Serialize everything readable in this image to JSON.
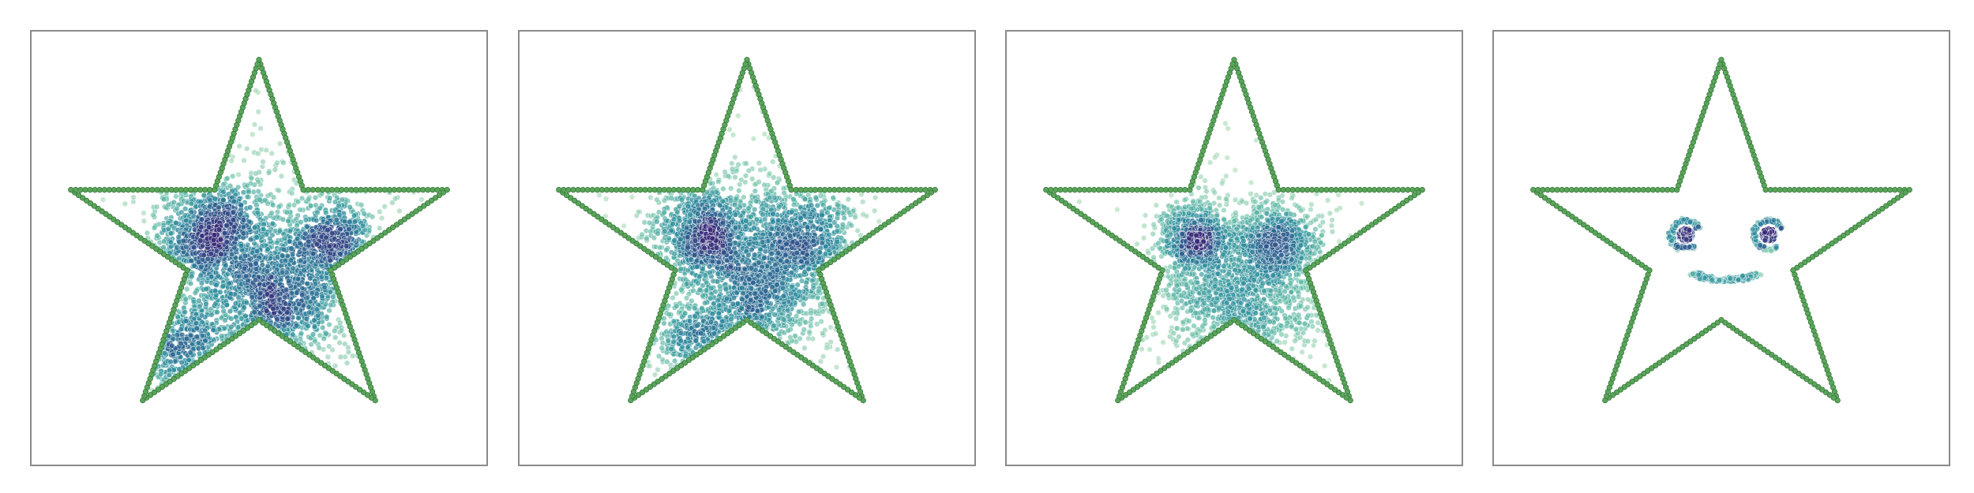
{
  "chart_data": [
    {
      "type": "scatter",
      "title": "",
      "xlabel": "",
      "ylabel": "",
      "axes": "hidden",
      "grid": false,
      "xlim": [
        -1.15,
        1.15
      ],
      "ylim": [
        -1.15,
        1.15
      ],
      "outline": {
        "shape": "five-pointed star",
        "vertices": [
          [
            0,
            1.0
          ],
          [
            0.2245,
            0.309
          ],
          [
            0.951,
            0.309
          ],
          [
            0.3633,
            -0.118
          ],
          [
            0.5878,
            -0.809
          ],
          [
            0,
            -0.382
          ],
          [
            -0.5878,
            -0.809
          ],
          [
            -0.3633,
            -0.118
          ],
          [
            -0.951,
            0.309
          ],
          [
            -0.2245,
            0.309
          ]
        ],
        "color": "#5aa55a",
        "point_count": 300
      },
      "clusters": [
        {
          "center": [
            -0.23,
            0.06
          ],
          "spread": 0.14,
          "count": 900
        },
        {
          "center": [
            0.1,
            -0.28
          ],
          "spread": 0.15,
          "count": 800
        },
        {
          "center": [
            0.38,
            0.02
          ],
          "spread": 0.12,
          "count": 500
        },
        {
          "center": [
            -0.38,
            -0.52
          ],
          "spread": 0.12,
          "count": 350
        },
        {
          "center": [
            0.0,
            0.0
          ],
          "spread": 0.38,
          "count": 600
        }
      ],
      "colormap": [
        "#a8dab0",
        "#5cb8a4",
        "#2b8c9c",
        "#2e5d8f",
        "#3b2c79"
      ]
    },
    {
      "type": "scatter",
      "title": "",
      "xlabel": "",
      "ylabel": "",
      "axes": "hidden",
      "grid": false,
      "xlim": [
        -1.15,
        1.15
      ],
      "ylim": [
        -1.15,
        1.15
      ],
      "outline": {
        "shape": "five-pointed star",
        "vertices": [
          [
            0,
            1.0
          ],
          [
            0.2245,
            0.309
          ],
          [
            0.951,
            0.309
          ],
          [
            0.3633,
            -0.118
          ],
          [
            0.5878,
            -0.809
          ],
          [
            0,
            -0.382
          ],
          [
            -0.5878,
            -0.809
          ],
          [
            -0.3633,
            -0.118
          ],
          [
            -0.951,
            0.309
          ],
          [
            -0.2245,
            0.309
          ]
        ],
        "color": "#5aa55a",
        "point_count": 300
      },
      "clusters": [
        {
          "center": [
            -0.22,
            0.08
          ],
          "spread": 0.12,
          "count": 800
        },
        {
          "center": [
            0.28,
            0.04
          ],
          "spread": 0.14,
          "count": 700
        },
        {
          "center": [
            0.05,
            -0.25
          ],
          "spread": 0.15,
          "count": 700
        },
        {
          "center": [
            -0.25,
            -0.5
          ],
          "spread": 0.12,
          "count": 300
        },
        {
          "center": [
            0.0,
            0.0
          ],
          "spread": 0.35,
          "count": 550
        }
      ],
      "colormap": [
        "#a8dab0",
        "#5cb8a4",
        "#2b8c9c",
        "#2e5d8f",
        "#3b2c79"
      ]
    },
    {
      "type": "scatter",
      "title": "",
      "xlabel": "",
      "ylabel": "",
      "axes": "hidden",
      "grid": false,
      "xlim": [
        -1.15,
        1.15
      ],
      "ylim": [
        -1.15,
        1.15
      ],
      "outline": {
        "shape": "five-pointed star",
        "vertices": [
          [
            0,
            1.0
          ],
          [
            0.2245,
            0.309
          ],
          [
            0.951,
            0.309
          ],
          [
            0.3633,
            -0.118
          ],
          [
            0.5878,
            -0.809
          ],
          [
            0,
            -0.382
          ],
          [
            -0.5878,
            -0.809
          ],
          [
            -0.3633,
            -0.118
          ],
          [
            -0.951,
            0.309
          ],
          [
            -0.2245,
            0.309
          ]
        ],
        "color": "#5aa55a",
        "point_count": 300
      },
      "clusters": [
        {
          "center": [
            -0.2,
            0.05
          ],
          "spread": 0.09,
          "count": 650
        },
        {
          "center": [
            0.22,
            0.03
          ],
          "spread": 0.1,
          "count": 650
        },
        {
          "center": [
            0.02,
            -0.3
          ],
          "spread": 0.2,
          "count": 850
        },
        {
          "center": [
            0.05,
            -0.1
          ],
          "spread": 0.28,
          "count": 450
        }
      ],
      "colormap": [
        "#a8dab0",
        "#5cb8a4",
        "#2b8c9c",
        "#2e5d8f",
        "#3b2c79"
      ]
    },
    {
      "type": "scatter",
      "title": "",
      "xlabel": "",
      "ylabel": "",
      "axes": "hidden",
      "grid": false,
      "xlim": [
        -1.15,
        1.15
      ],
      "ylim": [
        -1.15,
        1.15
      ],
      "outline": {
        "shape": "five-pointed star",
        "vertices": [
          [
            0,
            1.0
          ],
          [
            0.2245,
            0.309
          ],
          [
            0.951,
            0.309
          ],
          [
            0.3633,
            -0.118
          ],
          [
            0.5878,
            -0.809
          ],
          [
            0,
            -0.382
          ],
          [
            -0.5878,
            -0.809
          ],
          [
            -0.3633,
            -0.118
          ],
          [
            -0.951,
            0.309
          ],
          [
            -0.2245,
            0.309
          ]
        ],
        "color": "#5aa55a",
        "point_count": 300
      },
      "face": {
        "eyes": [
          {
            "center": [
              -0.18,
              0.07
            ],
            "core_radius": 0.035,
            "ring_radius": 0.075
          },
          {
            "center": [
              0.24,
              0.07
            ],
            "core_radius": 0.035,
            "ring_radius": 0.075
          }
        ],
        "smile": {
          "center": [
            0.02,
            -0.05
          ],
          "radius": 0.2,
          "count": 260
        }
      },
      "colormap": [
        "#a8dab0",
        "#5cb8a4",
        "#2b8c9c",
        "#2e5d8f",
        "#3b2c79"
      ]
    }
  ]
}
